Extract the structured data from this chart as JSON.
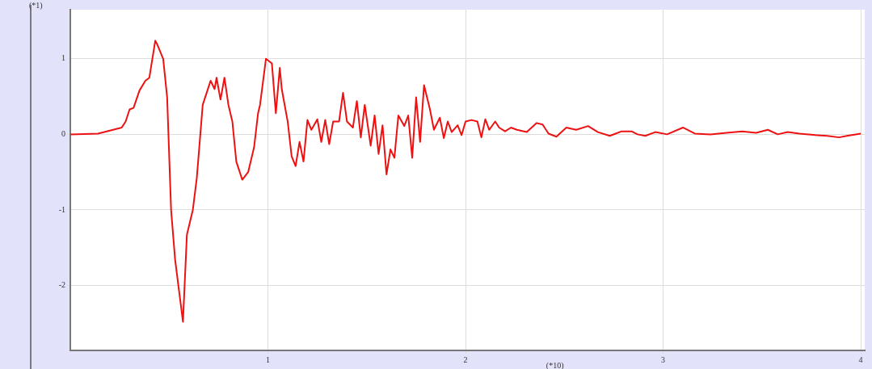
{
  "chart_data": {
    "type": "line",
    "xlabel": "(*10)",
    "ylabel": "(*1)",
    "color": "#ee1111",
    "grid": true,
    "legend": false,
    "marker": "none",
    "line_style": "solid",
    "xlim": [
      0,
      4.02
    ],
    "ylim": [
      -2.86,
      1.65
    ],
    "xticks": [
      1,
      2,
      3,
      4
    ],
    "yticks": [
      -2,
      -1,
      0,
      1
    ],
    "x": [
      0,
      0.14,
      0.26,
      0.28,
      0.3,
      0.32,
      0.35,
      0.38,
      0.4,
      0.43,
      0.44,
      0.47,
      0.49,
      0.51,
      0.53,
      0.54,
      0.57,
      0.59,
      0.62,
      0.64,
      0.67,
      0.69,
      0.71,
      0.73,
      0.74,
      0.76,
      0.78,
      0.8,
      0.82,
      0.84,
      0.87,
      0.9,
      0.93,
      0.95,
      0.96,
      0.99,
      1.02,
      1.04,
      1.06,
      1.07,
      1.1,
      1.12,
      1.14,
      1.16,
      1.18,
      1.2,
      1.22,
      1.25,
      1.27,
      1.29,
      1.31,
      1.33,
      1.36,
      1.38,
      1.4,
      1.43,
      1.45,
      1.47,
      1.49,
      1.52,
      1.54,
      1.56,
      1.58,
      1.6,
      1.62,
      1.64,
      1.66,
      1.69,
      1.71,
      1.73,
      1.75,
      1.77,
      1.79,
      1.82,
      1.84,
      1.87,
      1.89,
      1.91,
      1.93,
      1.96,
      1.98,
      2.0,
      2.03,
      2.06,
      2.08,
      2.1,
      2.12,
      2.15,
      2.17,
      2.2,
      2.23,
      2.26,
      2.31,
      2.36,
      2.39,
      2.42,
      2.46,
      2.51,
      2.56,
      2.62,
      2.67,
      2.73,
      2.79,
      2.84,
      2.87,
      2.91,
      2.96,
      3.02,
      3.1,
      3.16,
      3.24,
      3.32,
      3.4,
      3.47,
      3.53,
      3.58,
      3.63,
      3.69,
      3.77,
      3.83,
      3.89,
      3.93,
      4.0
    ],
    "values": [
      0,
      0.01,
      0.09,
      0.17,
      0.33,
      0.35,
      0.58,
      0.71,
      0.75,
      1.24,
      1.19,
      1.0,
      0.49,
      -1.0,
      -1.65,
      -1.86,
      -2.48,
      -1.33,
      -1.0,
      -0.58,
      0.39,
      0.55,
      0.71,
      0.6,
      0.75,
      0.46,
      0.75,
      0.39,
      0.17,
      -0.36,
      -0.6,
      -0.5,
      -0.17,
      0.28,
      0.39,
      1.0,
      0.94,
      0.28,
      0.88,
      0.6,
      0.17,
      -0.29,
      -0.42,
      -0.1,
      -0.36,
      0.19,
      0.06,
      0.2,
      -0.1,
      0.19,
      -0.13,
      0.17,
      0.17,
      0.55,
      0.17,
      0.09,
      0.44,
      -0.04,
      0.39,
      -0.15,
      0.25,
      -0.26,
      0.12,
      -0.53,
      -0.2,
      -0.31,
      0.25,
      0.11,
      0.25,
      -0.31,
      0.49,
      -0.1,
      0.65,
      0.33,
      0.06,
      0.22,
      -0.05,
      0.17,
      0.03,
      0.12,
      -0.01,
      0.17,
      0.19,
      0.17,
      -0.04,
      0.2,
      0.06,
      0.17,
      0.09,
      0.04,
      0.09,
      0.06,
      0.03,
      0.15,
      0.13,
      0.01,
      -0.03,
      0.09,
      0.06,
      0.11,
      0.03,
      -0.02,
      0.04,
      0.04,
      0.0,
      -0.02,
      0.03,
      0.0,
      0.09,
      0.01,
      0.0,
      0.02,
      0.04,
      0.02,
      0.06,
      0.0,
      0.03,
      0.01,
      -0.01,
      -0.02,
      -0.04,
      -0.02,
      0.01
    ]
  }
}
